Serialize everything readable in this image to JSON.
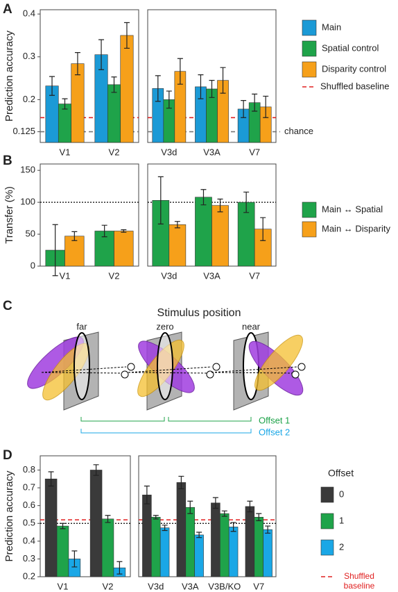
{
  "chart_data": [
    {
      "type": "bar",
      "panel": "A",
      "ylabel": "Prediction accuracy",
      "categories": [
        "V1",
        "V2",
        "V3d",
        "V3A",
        "V7"
      ],
      "series": [
        {
          "name": "Main",
          "color": "#1b9ad6",
          "values": [
            0.232,
            0.305,
            0.226,
            0.23,
            0.178
          ],
          "errors": [
            0.022,
            0.035,
            0.03,
            0.028,
            0.02
          ]
        },
        {
          "name": "Spatial control",
          "color": "#1fa34a",
          "values": [
            0.19,
            0.235,
            0.2,
            0.225,
            0.193
          ],
          "errors": [
            0.012,
            0.018,
            0.02,
            0.02,
            0.02
          ]
        },
        {
          "name": "Disparity control",
          "color": "#f6a01a",
          "values": [
            0.284,
            0.35,
            0.266,
            0.245,
            0.183
          ],
          "errors": [
            0.026,
            0.03,
            0.03,
            0.03,
            0.025
          ]
        }
      ],
      "reference_lines": [
        {
          "name": "Shuffled baseline",
          "value": 0.158,
          "color": "#e02020",
          "style": "dashed"
        },
        {
          "label": "chance",
          "value": 0.125,
          "color": "#777777",
          "style": "dashed"
        }
      ],
      "ylim": [
        0.1,
        0.41
      ],
      "yticks": [
        0.125,
        0.2,
        0.3,
        0.4
      ]
    },
    {
      "type": "bar",
      "panel": "B",
      "ylabel": "Transfer (%)",
      "categories": [
        "V1",
        "V2",
        "V3d",
        "V3A",
        "V7"
      ],
      "series": [
        {
          "name": "Main ↔ Spatial",
          "color": "#1fa34a",
          "values": [
            25,
            55,
            103,
            108,
            100
          ],
          "errors": [
            40,
            9,
            37,
            12,
            16
          ]
        },
        {
          "name": "Main ↔ Disparity",
          "color": "#f6a01a",
          "values": [
            47,
            55,
            65,
            95,
            58
          ],
          "errors": [
            7,
            2,
            5,
            10,
            18
          ]
        }
      ],
      "reference_lines": [
        {
          "value": 100,
          "color": "#000000",
          "style": "dotted"
        }
      ],
      "ylim": [
        0,
        160
      ],
      "yticks": [
        0,
        50,
        100,
        150
      ]
    },
    {
      "type": "bar",
      "panel": "D",
      "ylabel": "Prediction accuracy",
      "legend_title": "Offset",
      "categories": [
        "V1",
        "V2",
        "V3d",
        "V3A",
        "V3B/KO",
        "V7"
      ],
      "series": [
        {
          "name": "0",
          "color": "#3a3a3a",
          "values": [
            0.75,
            0.8,
            0.66,
            0.73,
            0.615,
            0.595
          ],
          "errors": [
            0.04,
            0.03,
            0.05,
            0.035,
            0.03,
            0.03
          ]
        },
        {
          "name": "1",
          "color": "#1fa34a",
          "values": [
            0.485,
            0.525,
            0.535,
            0.59,
            0.555,
            0.535
          ],
          "errors": [
            0.015,
            0.02,
            0.01,
            0.035,
            0.015,
            0.02
          ]
        },
        {
          "name": "2",
          "color": "#1aa7e6",
          "values": [
            0.3,
            0.25,
            0.475,
            0.435,
            0.48,
            0.465
          ],
          "errors": [
            0.045,
            0.035,
            0.015,
            0.015,
            0.025,
            0.02
          ]
        }
      ],
      "reference_lines": [
        {
          "name": "Shuffled baseline",
          "value": 0.52,
          "color": "#e02020",
          "style": "dashed"
        },
        {
          "value": 0.5,
          "color": "#000000",
          "style": "dotted"
        }
      ],
      "ylim": [
        0.2,
        0.88
      ],
      "yticks": [
        0.2,
        0.3,
        0.4,
        0.5,
        0.6,
        0.7,
        0.8
      ]
    }
  ],
  "diagram": {
    "panel": "C",
    "title": "Stimulus position",
    "positions": [
      "far",
      "zero",
      "near"
    ],
    "offsets": [
      "Offset 1",
      "Offset 2"
    ]
  }
}
